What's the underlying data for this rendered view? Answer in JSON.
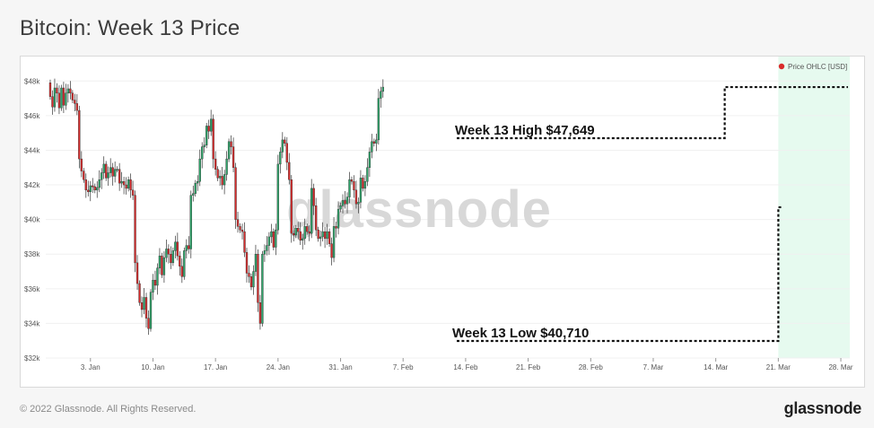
{
  "header": {
    "title": "Bitcoin: Week 13 Price"
  },
  "footer": {
    "copyright": "© 2022 Glassnode. All Rights Reserved.",
    "brand": "glassnode"
  },
  "watermark": "glassnode",
  "colors": {
    "up": "#2ea56a",
    "down": "#d92b2b",
    "highlight": "#e6faef",
    "legend_dot": "#d92b2b"
  },
  "chart_data": {
    "type": "candlestick",
    "legend": "Price OHLC [USD]",
    "ylim": [
      32000,
      49000
    ],
    "y_ticks": [
      32000,
      34000,
      36000,
      38000,
      40000,
      42000,
      44000,
      46000,
      48000
    ],
    "y_tick_labels": [
      "$32k",
      "$34k",
      "$36k",
      "$38k",
      "$40k",
      "$42k",
      "$44k",
      "$46k",
      "$48k"
    ],
    "x_start": "2021-12-29",
    "x_end": "2022-03-29",
    "x_ticks": [
      "3. Jan",
      "10. Jan",
      "17. Jan",
      "24. Jan",
      "31. Jan",
      "7. Feb",
      "14. Feb",
      "21. Feb",
      "28. Feb",
      "7. Mar",
      "14. Mar",
      "21. Mar",
      "28. Mar"
    ],
    "x_tick_dates": [
      "2022-01-03",
      "2022-01-10",
      "2022-01-17",
      "2022-01-24",
      "2022-01-31",
      "2022-02-07",
      "2022-02-14",
      "2022-02-21",
      "2022-02-28",
      "2022-03-07",
      "2022-03-14",
      "2022-03-21",
      "2022-03-28"
    ],
    "highlight_range": [
      "2022-03-21",
      "2022-03-29"
    ],
    "annotations": [
      {
        "label": "Week 13 High $47,649",
        "value": 47649
      },
      {
        "label": "Week 13 Low $40,710",
        "value": 40710
      }
    ],
    "close": [
      47100,
      46500,
      47600,
      47300,
      46450,
      47600,
      46600,
      47300,
      47550,
      47300,
      46900,
      46700,
      46300,
      43500,
      42800,
      42300,
      41700,
      41600,
      41950,
      41900,
      41700,
      41850,
      42300,
      42700,
      43200,
      42400,
      42700,
      43000,
      42500,
      42900,
      42900,
      42100,
      42200,
      42000,
      41800,
      42300,
      41700,
      41400,
      37500,
      36300,
      35200,
      34800,
      35500,
      34300,
      33700,
      35800,
      36500,
      36200,
      37200,
      37900,
      36800,
      37800,
      38300,
      38000,
      37500,
      38200,
      38700,
      37900,
      37300,
      36700,
      38200,
      38500,
      38300,
      41400,
      41500,
      42100,
      42200,
      43500,
      44200,
      44300,
      45400,
      45100,
      45800,
      43500,
      42900,
      42400,
      42500,
      42000,
      42600,
      43500,
      44500,
      44200,
      43000,
      40000,
      39600,
      39400,
      39300,
      38100,
      36900,
      36700,
      36100,
      37000,
      38000,
      35200,
      34000,
      38000,
      38200,
      38500,
      39000,
      39300,
      38400,
      39400,
      43200,
      43900,
      44600,
      44400,
      43300,
      42300,
      39200,
      39100,
      39500,
      39300,
      38800,
      38900,
      39600,
      39300,
      39200,
      41800,
      40800,
      39400,
      38900,
      39000,
      39300,
      38900,
      39300,
      38600,
      37800,
      39600,
      39500,
      40600,
      40800,
      41100,
      40900,
      41300,
      42300,
      42200,
      41700,
      40900,
      41000,
      42400,
      41800,
      42200,
      43000,
      43900,
      44500,
      44400,
      44600,
      47000,
      47400,
      47649
    ],
    "open": [
      47900,
      47100,
      46500,
      47600,
      47300,
      46450,
      47600,
      46600,
      47300,
      47550,
      47300,
      46900,
      46700,
      46300,
      43500,
      42800,
      42300,
      41700,
      41600,
      41950,
      41900,
      41700,
      41850,
      42300,
      42700,
      43200,
      42400,
      42700,
      43000,
      42500,
      42900,
      42900,
      42100,
      42200,
      42000,
      41800,
      42300,
      41700,
      41400,
      37500,
      36300,
      35200,
      34800,
      35500,
      34300,
      33700,
      35800,
      36500,
      36200,
      37200,
      37900,
      36800,
      37800,
      38300,
      38000,
      37500,
      38200,
      38700,
      37900,
      37300,
      36700,
      38200,
      38500,
      38300,
      41400,
      41500,
      42100,
      42200,
      43500,
      44200,
      44300,
      45400,
      45100,
      45800,
      43500,
      42900,
      42400,
      42500,
      42000,
      42600,
      43500,
      44500,
      44200,
      43000,
      40000,
      39600,
      39400,
      39300,
      38100,
      36900,
      36700,
      36100,
      37000,
      38000,
      35200,
      34000,
      38000,
      38200,
      38500,
      39000,
      39300,
      38400,
      39400,
      43200,
      43900,
      44600,
      44400,
      43300,
      42300,
      39200,
      39100,
      39500,
      39300,
      38800,
      38900,
      39600,
      39300,
      39200,
      41800,
      40800,
      39400,
      38900,
      39000,
      39300,
      38900,
      39300,
      38600,
      37800,
      39600,
      39500,
      40600,
      40800,
      41100,
      40900,
      41300,
      42300,
      42200,
      41700,
      40900,
      41000,
      42400,
      41800,
      42200,
      43000,
      43900,
      44500,
      44400,
      44600,
      47000,
      47400
    ]
  }
}
